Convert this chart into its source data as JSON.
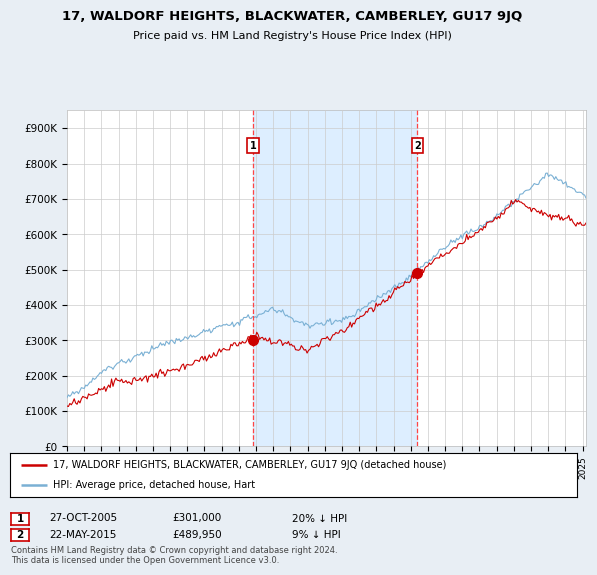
{
  "title": "17, WALDORF HEIGHTS, BLACKWATER, CAMBERLEY, GU17 9JQ",
  "subtitle": "Price paid vs. HM Land Registry's House Price Index (HPI)",
  "ylabel_ticks": [
    "£0",
    "£100K",
    "£200K",
    "£300K",
    "£400K",
    "£500K",
    "£600K",
    "£700K",
    "£800K",
    "£900K"
  ],
  "ytick_values": [
    0,
    100000,
    200000,
    300000,
    400000,
    500000,
    600000,
    700000,
    800000,
    900000
  ],
  "ylim": [
    0,
    950000
  ],
  "xlim_start": 1995.0,
  "xlim_end": 2025.2,
  "red_line_color": "#cc0000",
  "blue_line_color": "#7ab0d4",
  "shade_color": "#ddeeff",
  "marker1_x": 2005.82,
  "marker1_y": 301000,
  "marker2_x": 2015.39,
  "marker2_y": 489950,
  "marker1_label": "1",
  "marker2_label": "2",
  "marker1_date": "27-OCT-2005",
  "marker1_price": "£301,000",
  "marker1_hpi": "20% ↓ HPI",
  "marker2_date": "22-MAY-2015",
  "marker2_price": "£489,950",
  "marker2_hpi": "9% ↓ HPI",
  "legend_red": "17, WALDORF HEIGHTS, BLACKWATER, CAMBERLEY, GU17 9JQ (detached house)",
  "legend_blue": "HPI: Average price, detached house, Hart",
  "footnote": "Contains HM Land Registry data © Crown copyright and database right 2024.\nThis data is licensed under the Open Government Licence v3.0.",
  "background_color": "#e8eef4",
  "plot_bg_color": "#ffffff",
  "grid_color": "#cccccc",
  "vline_color": "#ff4444"
}
